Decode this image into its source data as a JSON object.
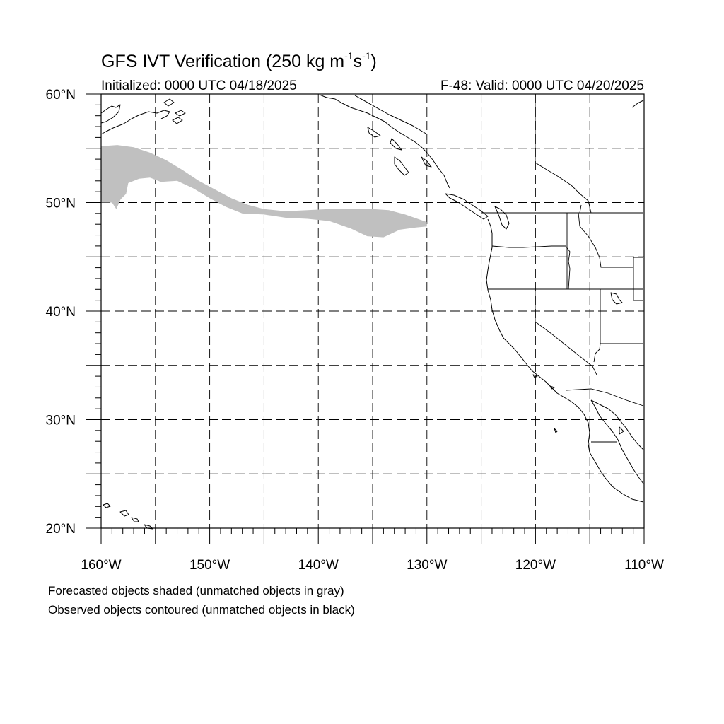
{
  "title": {
    "prefix": "GFS IVT Verification (250 kg m",
    "exp1": "-1",
    "mid": "s",
    "exp2": "-1",
    "suffix": ")"
  },
  "initialized": "Initialized: 0000 UTC 04/18/2025",
  "valid": "F-48: Valid: 0000 UTC 04/20/2025",
  "captions": [
    "Forecasted objects shaded (unmatched objects in gray)",
    "Observed objects contoured (unmatched objects in black)"
  ],
  "map": {
    "lon_range": [
      -160,
      -110
    ],
    "lat_range": [
      20,
      60
    ],
    "lat_labels": [
      {
        "lat": 60,
        "text": "60°N"
      },
      {
        "lat": 50,
        "text": "50°N"
      },
      {
        "lat": 40,
        "text": "40°N"
      },
      {
        "lat": 30,
        "text": "30°N"
      },
      {
        "lat": 20,
        "text": "20°N"
      }
    ],
    "lon_labels": [
      {
        "lon": -160,
        "text": "160°W"
      },
      {
        "lon": -150,
        "text": "150°W"
      },
      {
        "lon": -140,
        "text": "140°W"
      },
      {
        "lon": -130,
        "text": "130°W"
      },
      {
        "lon": -120,
        "text": "120°W"
      },
      {
        "lon": -110,
        "text": "110°W"
      }
    ],
    "grid_interval_deg": 5,
    "grid_style": "dashed",
    "forecast_object": {
      "status": "unmatched",
      "fill_color": "#c0c0c0",
      "outline": [
        [
          -160,
          55.2
        ],
        [
          -158.5,
          55.3
        ],
        [
          -157,
          55.1
        ],
        [
          -155.5,
          54.6
        ],
        [
          -154,
          53.9
        ],
        [
          -152.5,
          53.0
        ],
        [
          -151,
          52.0
        ],
        [
          -149.5,
          51.2
        ],
        [
          -148,
          50.4
        ],
        [
          -146.5,
          49.8
        ],
        [
          -145,
          49.4
        ],
        [
          -143,
          49.2
        ],
        [
          -141,
          49.3
        ],
        [
          -139,
          49.4
        ],
        [
          -137,
          49.4
        ],
        [
          -135,
          49.4
        ],
        [
          -133.5,
          49.3
        ],
        [
          -132,
          48.9
        ],
        [
          -130,
          48.2
        ],
        [
          -130,
          47.8
        ],
        [
          -131,
          47.7
        ],
        [
          -132.5,
          47.5
        ],
        [
          -134,
          46.8
        ],
        [
          -135.5,
          46.9
        ],
        [
          -137,
          47.6
        ],
        [
          -139,
          48.3
        ],
        [
          -141,
          48.5
        ],
        [
          -143,
          48.6
        ],
        [
          -145,
          48.9
        ],
        [
          -147,
          49.0
        ],
        [
          -148.5,
          49.6
        ],
        [
          -150,
          50.4
        ],
        [
          -151.5,
          51.3
        ],
        [
          -153,
          52.0
        ],
        [
          -154.5,
          51.9
        ],
        [
          -155.5,
          52.3
        ],
        [
          -156.5,
          52.2
        ],
        [
          -157.5,
          51.8
        ],
        [
          -157.7,
          50.8
        ],
        [
          -158.2,
          50.3
        ],
        [
          -158.6,
          49.4
        ],
        [
          -159,
          50.0
        ],
        [
          -160,
          50.0
        ]
      ]
    }
  }
}
